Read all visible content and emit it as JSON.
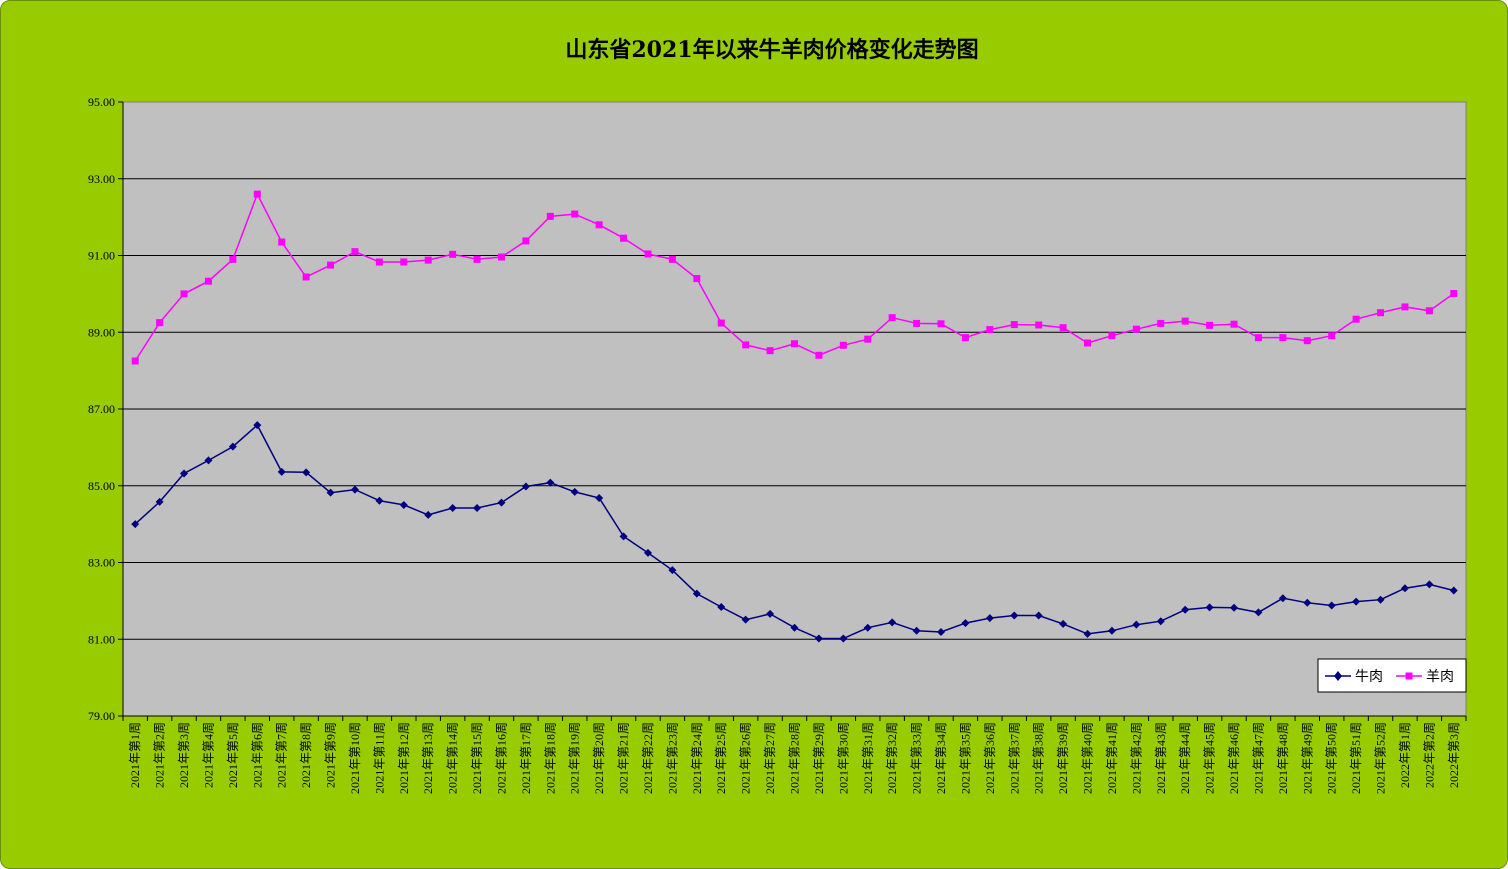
{
  "chart_data": {
    "type": "line",
    "title": "山东省2021年以来牛羊肉价格变化走势图",
    "xlabel": "",
    "ylabel": "",
    "ylim": [
      79,
      95
    ],
    "yticks": [
      "95.00",
      "93.00",
      "91.00",
      "89.00",
      "87.00",
      "85.00",
      "83.00",
      "81.00",
      "79.00"
    ],
    "grid": true,
    "legend_position": "bottom-right",
    "categories": [
      "2021年第1周",
      "2021年第2周",
      "2021年第3周",
      "2021年第4周",
      "2021年第5周",
      "2021年第6周",
      "2021年第7周",
      "2021年第8周",
      "2021年第9周",
      "2021年第10周",
      "2021年第11周",
      "2021年第12周",
      "2021年第13周",
      "2021年第14周",
      "2021年第15周",
      "2021年第16周",
      "2021年第17周",
      "2021年第18周",
      "2021年第19周",
      "2021年第20周",
      "2021年第21周",
      "2021年第22周",
      "2021年第23周",
      "2021年第24周",
      "2021年第25周",
      "2021年第26周",
      "2021年第27周",
      "2021年第28周",
      "2021年第29周",
      "2021年第30周",
      "2021年第31周",
      "2021年第32周",
      "2021年第33周",
      "2021年第34周",
      "2021年第35周",
      "2021年第36周",
      "2021年第37周",
      "2021年第38周",
      "2021年第39周",
      "2021年第40周",
      "2021年第41周",
      "2021年第42周",
      "2021年第43周",
      "2021年第44周",
      "2021年第45周",
      "2021年第46周",
      "2021年第47周",
      "2021年第48周",
      "2021年第49周",
      "2021年第50周",
      "2021年第51周",
      "2021年第52周",
      "2022年第1周",
      "2022年第2周",
      "2022年第3周"
    ],
    "series": [
      {
        "name": "牛肉",
        "color": "#000080",
        "marker": "diamond",
        "values": [
          84.0,
          84.58,
          85.32,
          85.66,
          86.02,
          86.58,
          85.36,
          85.35,
          84.82,
          84.9,
          84.61,
          84.5,
          84.24,
          84.42,
          84.42,
          84.56,
          84.98,
          85.08,
          84.84,
          84.68,
          83.68,
          83.25,
          82.8,
          82.19,
          81.84,
          81.51,
          81.66,
          81.3,
          81.02,
          81.02,
          81.3,
          81.44,
          81.22,
          81.19,
          81.42,
          81.55,
          81.62,
          81.62,
          81.4,
          81.14,
          81.22,
          81.38,
          81.47,
          81.77,
          81.83,
          81.82,
          81.7,
          82.07,
          81.95,
          81.88,
          81.98,
          82.03,
          82.33,
          82.43,
          82.27
        ]
      },
      {
        "name": "羊肉",
        "color": "#ff00ff",
        "marker": "square",
        "values": [
          88.25,
          89.25,
          90.0,
          90.33,
          90.9,
          92.6,
          91.35,
          90.44,
          90.75,
          91.1,
          90.83,
          90.83,
          90.88,
          91.03,
          90.9,
          90.96,
          91.38,
          92.02,
          92.08,
          91.8,
          91.45,
          91.04,
          90.9,
          90.4,
          89.24,
          88.67,
          88.52,
          88.7,
          88.4,
          88.66,
          88.82,
          89.38,
          89.23,
          89.22,
          88.86,
          89.07,
          89.2,
          89.19,
          89.12,
          88.72,
          88.91,
          89.08,
          89.23,
          89.29,
          89.18,
          89.21,
          88.86,
          88.86,
          88.78,
          88.91,
          89.34,
          89.51,
          89.66,
          89.56,
          90.01
        ]
      }
    ]
  }
}
